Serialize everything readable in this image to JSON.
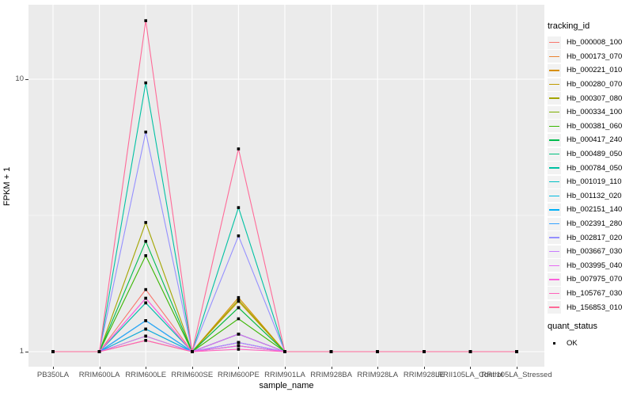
{
  "y_axis": {
    "title": "FPKM + 1",
    "ticks": [
      {
        "label": "10",
        "value": 10
      },
      {
        "label": "1",
        "value": 1
      }
    ]
  },
  "x_axis": {
    "title": "sample_name"
  },
  "legend": {
    "tracking": {
      "title": "tracking_id",
      "items": [
        {
          "label": "Hb_000008_100",
          "color": "#F8766D"
        },
        {
          "label": "Hb_000173_070",
          "color": "#EA8331"
        },
        {
          "label": "Hb_000221_010",
          "color": "#D89000"
        },
        {
          "label": "Hb_000280_070",
          "color": "#C09B00"
        },
        {
          "label": "Hb_000307_080",
          "color": "#A3A500"
        },
        {
          "label": "Hb_000334_100",
          "color": "#7CAE00"
        },
        {
          "label": "Hb_000381_060",
          "color": "#39B600"
        },
        {
          "label": "Hb_000417_240",
          "color": "#00BB4E"
        },
        {
          "label": "Hb_000489_050",
          "color": "#00BF7D"
        },
        {
          "label": "Hb_000784_050",
          "color": "#00C1A3"
        },
        {
          "label": "Hb_001019_110",
          "color": "#00BFC4"
        },
        {
          "label": "Hb_001132_020",
          "color": "#00BAE0"
        },
        {
          "label": "Hb_002151_140",
          "color": "#00B0F6"
        },
        {
          "label": "Hb_002391_280",
          "color": "#35A2FF"
        },
        {
          "label": "Hb_002817_020",
          "color": "#9590FF"
        },
        {
          "label": "Hb_003667_030",
          "color": "#C77CFF"
        },
        {
          "label": "Hb_003995_040",
          "color": "#E76BF3"
        },
        {
          "label": "Hb_007975_070",
          "color": "#FA62DB"
        },
        {
          "label": "Hb_105767_030",
          "color": "#FF62BC"
        },
        {
          "label": "Hb_156853_010",
          "color": "#FF6A98"
        }
      ]
    },
    "quant": {
      "title": "quant_status",
      "items": [
        {
          "label": "OK"
        }
      ]
    }
  },
  "chart_data": {
    "type": "line",
    "title": "",
    "xlabel": "sample_name",
    "ylabel": "FPKM + 1",
    "yscale": "log10",
    "ylim": [
      1,
      18.8
    ],
    "grid": true,
    "legend_position": "right",
    "panel_bg": "#EBEBEB",
    "grid_color": "#FFFFFF",
    "point_color": "#000000",
    "grid_major_y": [
      1,
      10
    ],
    "grid_minor_y": [
      3.162
    ],
    "categories": [
      "PB350LA",
      "RRIM600LA",
      "RRIM600LE",
      "RRIM600SE",
      "RRIM600PE",
      "RRIM901LA",
      "RRIM928BA",
      "RRIM928LA",
      "RRIM928LE",
      "RRII105LA_Control",
      "RRII105LA_Stressed"
    ],
    "series": [
      {
        "name": "Hb_000008_100",
        "color": "#F8766D",
        "values": [
          1,
          1,
          1.69,
          1,
          1.16,
          1,
          1,
          1,
          1,
          1,
          1
        ]
      },
      {
        "name": "Hb_000173_070",
        "color": "#EA8331",
        "values": [
          1,
          1,
          1.1,
          1,
          1.08,
          1,
          1,
          1,
          1,
          1,
          1
        ]
      },
      {
        "name": "Hb_000221_010",
        "color": "#D89000",
        "values": [
          1,
          1,
          1.21,
          1,
          1.58,
          1,
          1,
          1,
          1,
          1,
          1
        ]
      },
      {
        "name": "Hb_000280_070",
        "color": "#C09B00",
        "values": [
          1,
          1,
          1.14,
          1,
          1.53,
          1,
          1,
          1,
          1,
          1,
          1
        ]
      },
      {
        "name": "Hb_000307_080",
        "color": "#A3A500",
        "values": [
          1,
          1,
          2.98,
          1,
          1.55,
          1,
          1,
          1,
          1,
          1,
          1
        ]
      },
      {
        "name": "Hb_000334_100",
        "color": "#7CAE00",
        "values": [
          1,
          1,
          1.51,
          1,
          1.45,
          1,
          1,
          1,
          1,
          1,
          1
        ]
      },
      {
        "name": "Hb_000381_060",
        "color": "#39B600",
        "values": [
          1,
          1,
          2.25,
          1,
          1.32,
          1,
          1,
          1,
          1,
          1,
          1
        ]
      },
      {
        "name": "Hb_000417_240",
        "color": "#00BB4E",
        "values": [
          1,
          1,
          2.54,
          1,
          1.45,
          1,
          1,
          1,
          1,
          1,
          1
        ]
      },
      {
        "name": "Hb_000489_050",
        "color": "#00BF7D",
        "values": [
          1,
          1,
          1.3,
          1,
          1.16,
          1,
          1,
          1,
          1,
          1,
          1
        ]
      },
      {
        "name": "Hb_000784_050",
        "color": "#00C1A3",
        "values": [
          1,
          1,
          9.7,
          1,
          3.38,
          1,
          1,
          1,
          1,
          1,
          1
        ]
      },
      {
        "name": "Hb_001019_110",
        "color": "#00BFC4",
        "values": [
          1,
          1,
          1.51,
          1,
          1.05,
          1,
          1,
          1,
          1,
          1,
          1
        ]
      },
      {
        "name": "Hb_001132_020",
        "color": "#00BAE0",
        "values": [
          1,
          1,
          1.3,
          1,
          1.16,
          1,
          1,
          1,
          1,
          1,
          1
        ]
      },
      {
        "name": "Hb_002151_140",
        "color": "#00B0F6",
        "values": [
          1,
          1,
          1.21,
          1,
          1.08,
          1,
          1,
          1,
          1,
          1,
          1
        ]
      },
      {
        "name": "Hb_002391_280",
        "color": "#35A2FF",
        "values": [
          1,
          1,
          1.3,
          1,
          1.08,
          1,
          1,
          1,
          1,
          1,
          1
        ]
      },
      {
        "name": "Hb_002817_020",
        "color": "#9590FF",
        "values": [
          1,
          1,
          6.4,
          1,
          2.66,
          1,
          1,
          1,
          1,
          1,
          1
        ]
      },
      {
        "name": "Hb_003667_030",
        "color": "#C77CFF",
        "values": [
          1,
          1,
          1.14,
          1,
          1.08,
          1,
          1,
          1,
          1,
          1,
          1
        ]
      },
      {
        "name": "Hb_003995_040",
        "color": "#E76BF3",
        "values": [
          1,
          1,
          1.57,
          1,
          1.16,
          1,
          1,
          1,
          1,
          1,
          1
        ]
      },
      {
        "name": "Hb_007975_070",
        "color": "#FA62DB",
        "values": [
          1,
          1,
          1.57,
          1,
          1.05,
          1,
          1,
          1,
          1,
          1,
          1
        ]
      },
      {
        "name": "Hb_105767_030",
        "color": "#FF62BC",
        "values": [
          1,
          1,
          1.1,
          1,
          1.02,
          1,
          1,
          1,
          1,
          1,
          1
        ]
      },
      {
        "name": "Hb_156853_010",
        "color": "#FF6A98",
        "values": [
          1,
          1,
          16.4,
          1,
          5.55,
          1,
          1,
          1,
          1,
          1,
          1
        ]
      }
    ],
    "point_legend": {
      "title": "quant_status",
      "items": [
        "OK"
      ]
    }
  }
}
